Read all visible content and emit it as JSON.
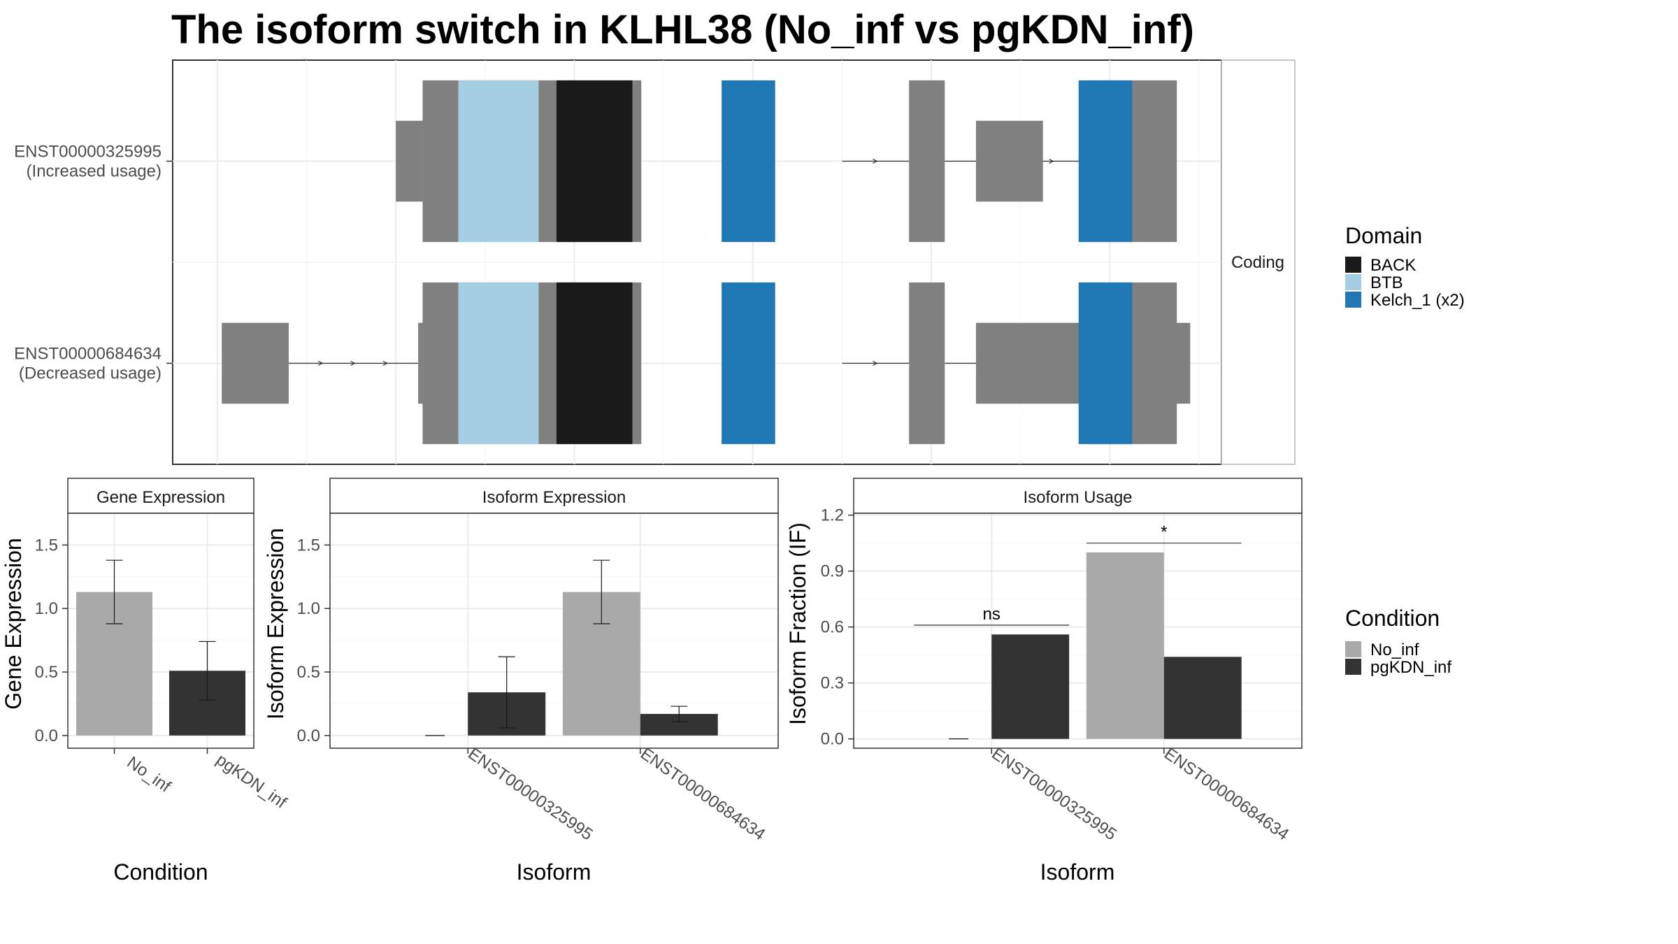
{
  "title": "The isoform switch in KLHL38 (No_inf vs pgKDN_inf)",
  "colors": {
    "exon": "#808080",
    "BACK": "#1a1a1a",
    "BTB": "#a6cee3",
    "Kelch_1 (x2)": "#1f78b4",
    "No_inf": "#a9a9a9",
    "pgKDN_inf": "#333333"
  },
  "structure": {
    "strip": "Coding",
    "isoforms": [
      {
        "id": "ENST00000325995",
        "label_line1": "ENST00000325995",
        "label_line2": "(Increased usage)",
        "utr": [
          [
            10.0,
            10.6
          ],
          [
            23.0,
            24.5
          ]
        ],
        "cds": [
          [
            10.6,
            15.5
          ],
          [
            21.5,
            22.3
          ],
          [
            25.5,
            27.5
          ]
        ],
        "domains": [
          {
            "name": "BTB",
            "start": 11.4,
            "end": 13.2
          },
          {
            "name": "BACK",
            "start": 13.6,
            "end": 15.3
          },
          {
            "name": "Kelch_1 (x2)",
            "start": 17.3,
            "end": 18.5
          },
          {
            "name": "Kelch_1 (x2)",
            "start": 25.3,
            "end": 26.5
          }
        ],
        "introns": [
          [
            20.0,
            21.5
          ],
          [
            22.3,
            25.5
          ]
        ]
      },
      {
        "id": "ENST00000684634",
        "label_line1": "ENST00000684634",
        "label_line2": "(Decreased usage)",
        "utr": [
          [
            6.1,
            7.6
          ],
          [
            10.5,
            10.6
          ],
          [
            23.0,
            27.8
          ]
        ],
        "cds": [
          [
            10.6,
            15.5
          ],
          [
            21.5,
            22.3
          ],
          [
            25.5,
            27.5
          ]
        ],
        "domains": [
          {
            "name": "BTB",
            "start": 11.4,
            "end": 13.2
          },
          {
            "name": "BACK",
            "start": 13.6,
            "end": 15.3
          },
          {
            "name": "Kelch_1 (x2)",
            "start": 17.3,
            "end": 18.5
          },
          {
            "name": "Kelch_1 (x2)",
            "start": 25.3,
            "end": 26.5
          }
        ],
        "introns": [
          [
            7.6,
            10.5
          ],
          [
            20.0,
            21.5
          ],
          [
            22.3,
            25.5
          ]
        ]
      }
    ],
    "domain_legend_title": "Domain",
    "domain_legend": [
      "BACK",
      "BTB",
      "Kelch_1 (x2)"
    ]
  },
  "chart_data": [
    {
      "type": "bar",
      "title": "Gene Expression",
      "xlabel": "Condition",
      "ylabel": "Gene Expression",
      "ylim": [
        -0.1,
        1.75
      ],
      "yticks": [
        "0.0",
        "0.5",
        "1.0",
        "1.5"
      ],
      "categories": [
        "No_inf",
        "pgKDN_inf"
      ],
      "series": [
        {
          "name": "No_inf",
          "values": [
            1.13,
            null
          ],
          "error_low": [
            0.88,
            null
          ],
          "error_high": [
            1.38,
            null
          ]
        },
        {
          "name": "pgKDN_inf",
          "values": [
            null,
            0.51
          ],
          "error_low": [
            null,
            0.28
          ],
          "error_high": [
            null,
            0.74
          ]
        }
      ]
    },
    {
      "type": "bar",
      "title": "Isoform Expression",
      "xlabel": "Isoform",
      "ylabel": "Isoform Expression",
      "ylim": [
        -0.1,
        1.75
      ],
      "yticks": [
        "0.0",
        "0.5",
        "1.0",
        "1.5"
      ],
      "categories": [
        "ENST00000325995",
        "ENST00000684634"
      ],
      "series": [
        {
          "name": "No_inf",
          "values": [
            0.0,
            1.13
          ],
          "error_low": [
            0.0,
            0.88
          ],
          "error_high": [
            0.0,
            1.38
          ]
        },
        {
          "name": "pgKDN_inf",
          "values": [
            0.34,
            0.17
          ],
          "error_low": [
            0.06,
            0.11
          ],
          "error_high": [
            0.62,
            0.23
          ]
        }
      ]
    },
    {
      "type": "bar",
      "title": "Isoform Usage",
      "xlabel": "Isoform",
      "ylabel": "Isoform Fraction (IF)",
      "ylim": [
        -0.05,
        1.21
      ],
      "yticks": [
        "0.0",
        "0.3",
        "0.6",
        "0.9",
        "1.2"
      ],
      "categories": [
        "ENST00000325995",
        "ENST00000684634"
      ],
      "series": [
        {
          "name": "No_inf",
          "values": [
            0.0,
            1.0
          ]
        },
        {
          "name": "pgKDN_inf",
          "values": [
            0.56,
            0.44
          ]
        }
      ],
      "significance": [
        {
          "category": "ENST00000325995",
          "label": "ns",
          "y": 0.61
        },
        {
          "category": "ENST00000684634",
          "label": "*",
          "y": 1.05
        }
      ]
    }
  ],
  "condition_legend": {
    "title": "Condition",
    "items": [
      "No_inf",
      "pgKDN_inf"
    ]
  }
}
